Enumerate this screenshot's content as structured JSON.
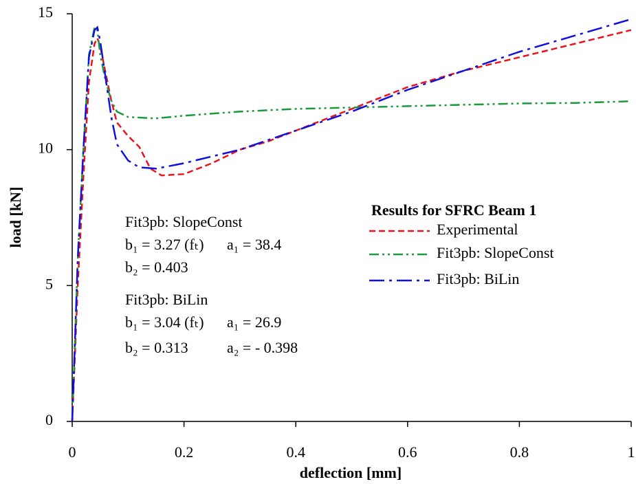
{
  "chart_data": {
    "type": "line",
    "xlabel": "deflection [mm]",
    "ylabel": "load [kN]",
    "xlim": [
      0,
      1
    ],
    "xticks": [
      0,
      0.2,
      0.4,
      0.6,
      0.8,
      1
    ],
    "ylim": [
      0,
      15
    ],
    "yticks": [
      0,
      5,
      10,
      15
    ],
    "legend_title": "Results for SFRC Beam 1",
    "series": [
      {
        "name": "Experimental",
        "color": "#e8141c",
        "dash": "dashed",
        "x": [
          0,
          0.005,
          0.01,
          0.02,
          0.03,
          0.04,
          0.045,
          0.05,
          0.06,
          0.07,
          0.08,
          0.1,
          0.12,
          0.14,
          0.16,
          0.2,
          0.25,
          0.3,
          0.35,
          0.4,
          0.5,
          0.6,
          0.7,
          0.8,
          0.9,
          1.0
        ],
        "values": [
          0,
          2.5,
          5,
          9,
          12.5,
          13.9,
          14.1,
          13.8,
          12.8,
          11.8,
          11.0,
          10.5,
          10.1,
          9.3,
          9.05,
          9.1,
          9.5,
          10.0,
          10.3,
          10.7,
          11.5,
          12.3,
          12.9,
          13.4,
          13.9,
          14.4
        ]
      },
      {
        "name": "Fit3pb: SlopeConst",
        "color": "#1a9a3a",
        "dash": "dash-dot-dot",
        "x": [
          0,
          0.005,
          0.01,
          0.02,
          0.03,
          0.04,
          0.045,
          0.05,
          0.06,
          0.07,
          0.08,
          0.1,
          0.15,
          0.2,
          0.3,
          0.4,
          0.5,
          0.6,
          0.7,
          0.8,
          0.9,
          1.0
        ],
        "values": [
          0,
          3,
          6,
          10,
          13.5,
          14.5,
          14.4,
          13.5,
          12.5,
          11.8,
          11.4,
          11.2,
          11.15,
          11.25,
          11.4,
          11.5,
          11.55,
          11.6,
          11.65,
          11.7,
          11.72,
          11.78
        ]
      },
      {
        "name": "Fit3pb: BiLin",
        "color": "#1010e0",
        "dash": "dash-dot",
        "x": [
          0,
          0.005,
          0.01,
          0.02,
          0.03,
          0.04,
          0.045,
          0.05,
          0.06,
          0.07,
          0.08,
          0.1,
          0.12,
          0.15,
          0.2,
          0.3,
          0.4,
          0.5,
          0.6,
          0.7,
          0.8,
          0.9,
          1.0
        ],
        "values": [
          0,
          3,
          6,
          10,
          13.4,
          14.4,
          14.5,
          14.0,
          12.6,
          11.2,
          10.2,
          9.6,
          9.35,
          9.3,
          9.5,
          10.0,
          10.7,
          11.4,
          12.2,
          12.9,
          13.6,
          14.2,
          14.8
        ]
      }
    ],
    "annotations": [
      [
        "Fit3pb: SlopeConst"
      ],
      [
        "b₁ = 3.27 (fₜ)",
        "a₁ = 38.4"
      ],
      [
        "b₂ = 0.403"
      ],
      [
        "Fit3pb: BiLin"
      ],
      [
        "b₁ = 3.04 (fₜ)",
        "a₁ = 26.9"
      ],
      [
        "b₂ = 0.313",
        "a₂ = - 0.398"
      ]
    ]
  }
}
